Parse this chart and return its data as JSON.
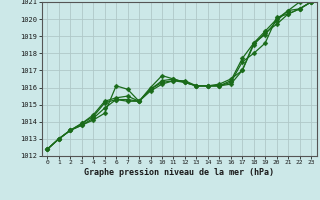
{
  "title": "Graphe pression niveau de la mer (hPa)",
  "xlim": [
    -0.5,
    23.5
  ],
  "ylim": [
    1012,
    1021
  ],
  "yticks": [
    1012,
    1013,
    1014,
    1015,
    1016,
    1017,
    1018,
    1019,
    1020,
    1021
  ],
  "xticks": [
    0,
    1,
    2,
    3,
    4,
    5,
    6,
    7,
    8,
    9,
    10,
    11,
    12,
    13,
    14,
    15,
    16,
    17,
    18,
    19,
    20,
    21,
    22,
    23
  ],
  "bg_color": "#cce8e8",
  "grid_color": "#b0c8c8",
  "line_color": "#1a6b1a",
  "markersize": 2.5,
  "linewidth": 0.9,
  "series": [
    [
      1012.4,
      1013.0,
      1013.5,
      1013.8,
      1014.1,
      1014.5,
      1016.1,
      1015.9,
      1015.2,
      1016.0,
      1016.7,
      1016.5,
      1016.3,
      1016.1,
      1016.1,
      1016.2,
      1016.5,
      1017.0,
      1018.6,
      1019.3,
      1020.0,
      1020.5,
      1021.0,
      1021.0
    ],
    [
      1012.4,
      1013.0,
      1013.5,
      1013.8,
      1014.2,
      1014.8,
      1015.3,
      1015.2,
      1015.2,
      1015.8,
      1016.2,
      1016.4,
      1016.4,
      1016.1,
      1016.1,
      1016.1,
      1016.2,
      1017.0,
      1018.5,
      1019.2,
      1019.7,
      1020.3,
      1020.6,
      1021.0
    ],
    [
      1012.4,
      1013.0,
      1013.5,
      1013.9,
      1014.3,
      1015.1,
      1015.3,
      1015.3,
      1015.2,
      1015.9,
      1016.3,
      1016.4,
      1016.3,
      1016.1,
      1016.1,
      1016.1,
      1016.3,
      1017.5,
      1018.0,
      1018.6,
      1020.1,
      1020.3,
      1020.6,
      1021.0
    ],
    [
      1012.4,
      1013.0,
      1013.5,
      1013.9,
      1014.4,
      1015.2,
      1015.4,
      1015.5,
      1015.2,
      1015.9,
      1016.4,
      1016.5,
      1016.3,
      1016.1,
      1016.1,
      1016.1,
      1016.4,
      1017.7,
      1018.6,
      1019.1,
      1019.9,
      1020.5,
      1020.6,
      1021.0
    ]
  ]
}
